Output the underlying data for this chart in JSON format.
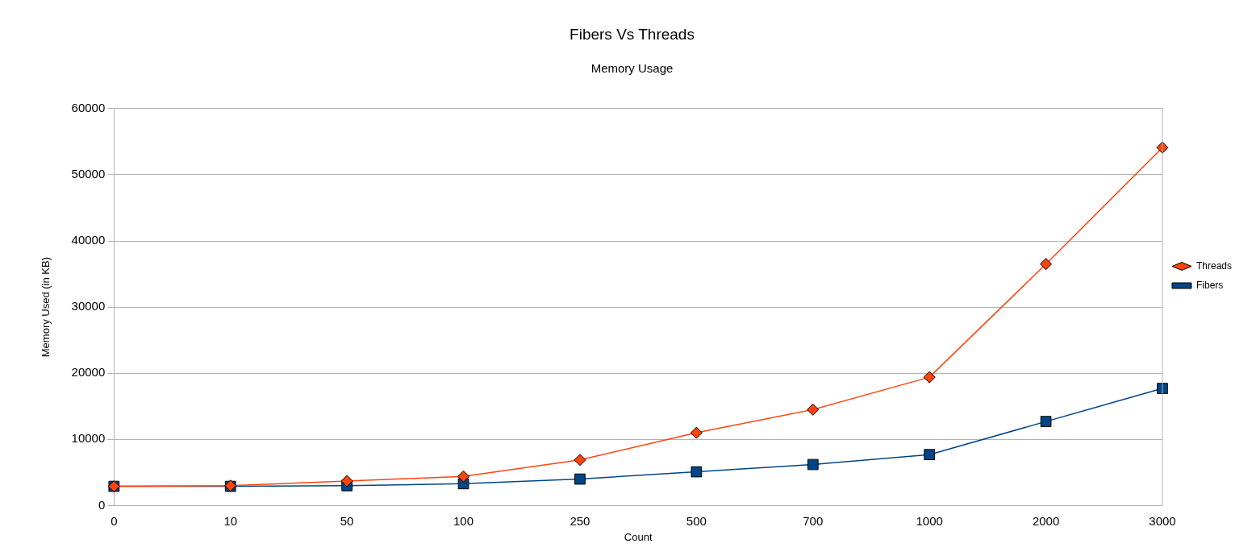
{
  "chart_data": {
    "type": "line",
    "title": "Fibers Vs Threads",
    "subtitle": "Memory Usage",
    "xlabel": "Count",
    "ylabel": "Memory Used (in KB)",
    "categories": [
      "0",
      "10",
      "50",
      "100",
      "250",
      "500",
      "700",
      "1000",
      "2000",
      "3000"
    ],
    "series": [
      {
        "name": "Fibers",
        "color": "#004586",
        "marker": "square",
        "values": [
          2900,
          2900,
          3000,
          3300,
          4000,
          5100,
          6200,
          7700,
          12700,
          17700
        ]
      },
      {
        "name": "Threads",
        "color": "#ff420e",
        "marker": "diamond",
        "values": [
          2900,
          3000,
          3700,
          4400,
          6900,
          11000,
          14500,
          19400,
          36500,
          54100
        ]
      }
    ],
    "ylim": [
      0,
      60000
    ],
    "yticks": [
      0,
      10000,
      20000,
      30000,
      40000,
      50000,
      60000
    ],
    "grid": "y",
    "legend": "right",
    "line_style": "solid"
  }
}
